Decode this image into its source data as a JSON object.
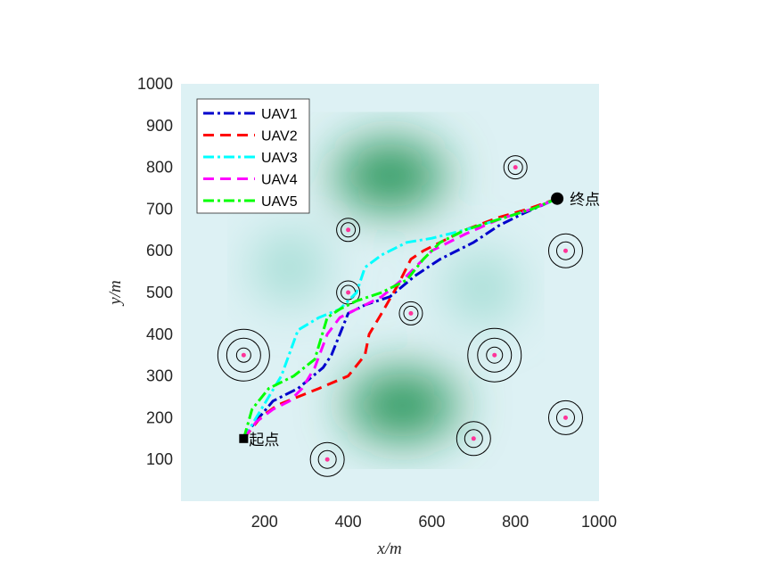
{
  "chart_data": {
    "type": "line",
    "xlabel": "x/m",
    "ylabel": "y/m",
    "xlim": [
      0,
      1000
    ],
    "ylim": [
      0,
      1000
    ],
    "xticks": [
      "200",
      "400",
      "600",
      "800",
      "1000"
    ],
    "yticks": [
      "100",
      "200",
      "300",
      "400",
      "500",
      "600",
      "700",
      "800",
      "900",
      "1000"
    ],
    "xtick_values": [
      200,
      400,
      600,
      800,
      1000
    ],
    "ytick_values": [
      100,
      200,
      300,
      400,
      500,
      600,
      700,
      800,
      900,
      1000
    ],
    "grid": false,
    "legend": "top-left",
    "background": "terrain heat map (light cyan to green peaks)",
    "start": {
      "label": "起点",
      "x": 150,
      "y": 150
    },
    "goal": {
      "label": "终点",
      "x": 900,
      "y": 725
    },
    "threats": [
      {
        "x": 150,
        "y": 350,
        "rings": 3
      },
      {
        "x": 350,
        "y": 100,
        "rings": 2
      },
      {
        "x": 400,
        "y": 650,
        "rings": 1
      },
      {
        "x": 400,
        "y": 500,
        "rings": 1
      },
      {
        "x": 550,
        "y": 450,
        "rings": 1
      },
      {
        "x": 700,
        "y": 150,
        "rings": 2
      },
      {
        "x": 750,
        "y": 350,
        "rings": 3
      },
      {
        "x": 800,
        "y": 800,
        "rings": 1
      },
      {
        "x": 920,
        "y": 600,
        "rings": 2
      },
      {
        "x": 920,
        "y": 200,
        "rings": 2
      }
    ],
    "terrain_peaks": [
      {
        "x": 500,
        "y": 780
      },
      {
        "x": 530,
        "y": 230
      },
      {
        "x": 260,
        "y": 560
      },
      {
        "x": 720,
        "y": 510
      }
    ],
    "series": [
      {
        "name": "UAV1",
        "color": "#0000cc",
        "dash": "dashdot",
        "x": [
          150,
          170,
          220,
          280,
          340,
          360,
          400,
          440,
          500,
          560,
          620,
          700,
          760,
          820,
          900
        ],
        "y": [
          150,
          180,
          240,
          270,
          320,
          350,
          450,
          470,
          490,
          540,
          580,
          620,
          660,
          690,
          725
        ]
      },
      {
        "name": "UAV2",
        "color": "#ff0000",
        "dash": "dashed",
        "x": [
          150,
          190,
          230,
          280,
          330,
          400,
          440,
          450,
          480,
          520,
          550,
          580,
          620,
          680,
          760,
          830,
          900
        ],
        "y": [
          150,
          200,
          230,
          250,
          270,
          300,
          350,
          400,
          450,
          520,
          580,
          600,
          620,
          650,
          680,
          700,
          725
        ]
      },
      {
        "name": "UAV3",
        "color": "#00ffff",
        "dash": "dashdot",
        "x": [
          150,
          180,
          210,
          240,
          280,
          330,
          380,
          420,
          440,
          480,
          540,
          600,
          680,
          760,
          840,
          900
        ],
        "y": [
          150,
          200,
          250,
          300,
          410,
          440,
          460,
          500,
          560,
          590,
          620,
          630,
          650,
          675,
          700,
          725
        ]
      },
      {
        "name": "UAV4",
        "color": "#ff00ff",
        "dash": "dashed",
        "x": [
          150,
          180,
          220,
          260,
          290,
          320,
          350,
          380,
          420,
          480,
          540,
          600,
          680,
          760,
          840,
          900
        ],
        "y": [
          150,
          190,
          220,
          240,
          270,
          320,
          400,
          440,
          460,
          490,
          540,
          600,
          640,
          675,
          700,
          725
        ]
      },
      {
        "name": "UAV5",
        "color": "#00ff00",
        "dash": "dashdot",
        "x": [
          150,
          170,
          210,
          270,
          320,
          350,
          380,
          420,
          480,
          540,
          580,
          620,
          680,
          760,
          840,
          900
        ],
        "y": [
          150,
          220,
          270,
          300,
          340,
          440,
          460,
          480,
          500,
          530,
          580,
          620,
          650,
          675,
          700,
          725
        ]
      }
    ]
  }
}
